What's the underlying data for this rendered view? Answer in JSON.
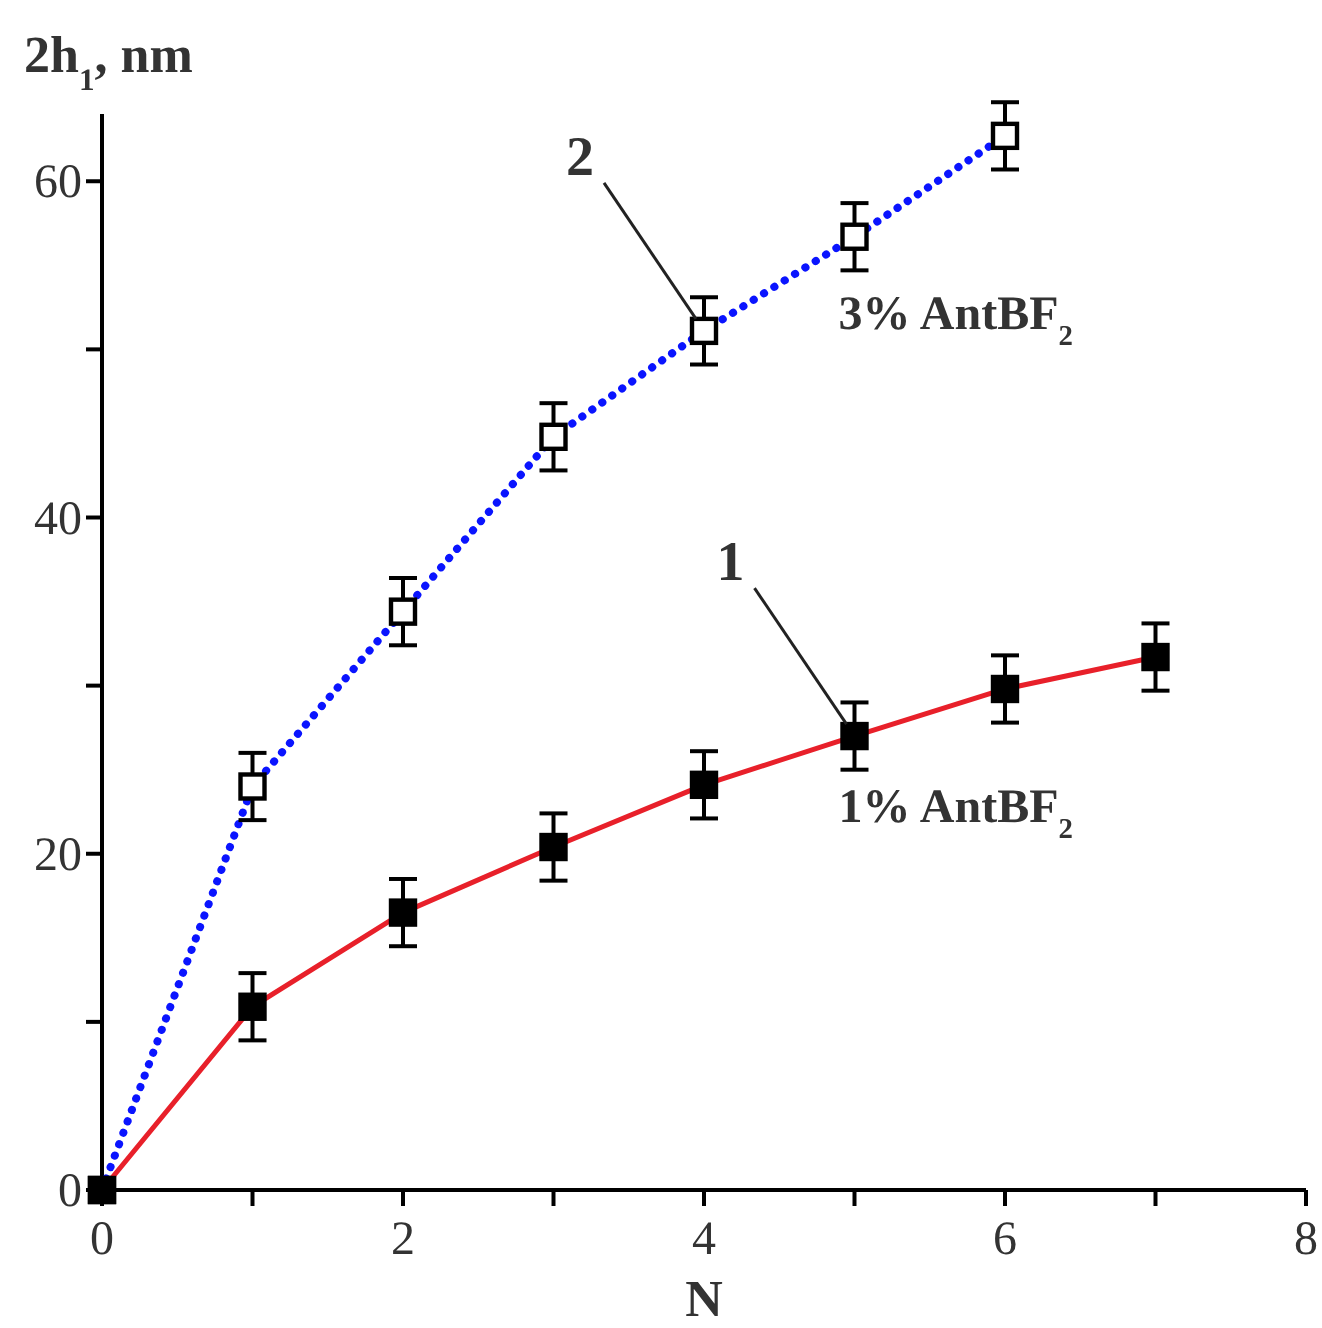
{
  "chart_data": {
    "type": "line",
    "xlabel": "N",
    "ylabel": "2h$_{1}$, nm",
    "xlim": [
      0,
      8
    ],
    "ylim": [
      0,
      64
    ],
    "xticks": [
      0,
      {
        "value": 1,
        "label": null
      },
      2,
      {
        "value": 3,
        "label": null
      },
      4,
      {
        "value": 5,
        "label": null
      },
      6,
      {
        "value": 7,
        "label": null
      },
      8
    ],
    "yticks": [
      0,
      {
        "value": 10,
        "label": null
      },
      20,
      {
        "value": 30,
        "label": null
      },
      40,
      {
        "value": 50,
        "label": null
      },
      60
    ],
    "marker": "square",
    "grid": false,
    "annotations": [
      {
        "text": "2",
        "x": 4,
        "y": 51.1
      },
      {
        "text": "1",
        "x": 5,
        "y": 27
      }
    ],
    "series": [
      {
        "name": "3% AntBF$_{2}$",
        "color": "#0a14ff",
        "line_style": "dotted",
        "x": [
          0,
          1,
          2,
          3,
          4,
          5,
          6
        ],
        "values": [
          0,
          24,
          34.4,
          44.8,
          51.1,
          56.7,
          62.7
        ],
        "errors": [
          null,
          2,
          2,
          2,
          2,
          2,
          2
        ]
      },
      {
        "name": "1% AntBF$_{2}$",
        "color": "#e8202a",
        "line_style": "solid",
        "x": [
          0,
          1,
          2,
          3,
          4,
          5,
          6,
          7
        ],
        "values": [
          0,
          10.9,
          16.5,
          20.4,
          24.1,
          27,
          29.8,
          31.7
        ],
        "errors": [
          null,
          2,
          2,
          2,
          2,
          2,
          2,
          2
        ]
      }
    ]
  }
}
